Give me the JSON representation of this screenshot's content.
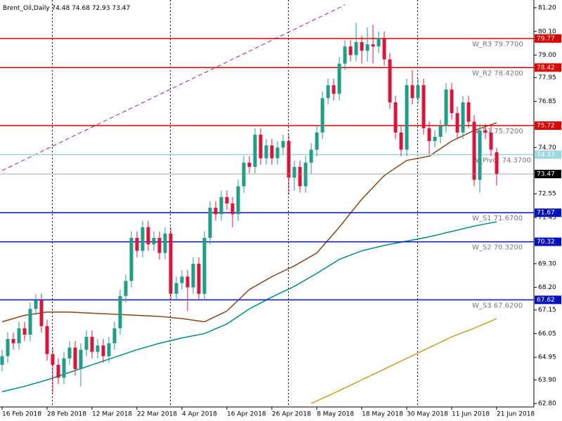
{
  "chart_data": {
    "type": "candlestick",
    "title": "Brent_Oil,Daily",
    "categories": [
      "16 Feb 2018",
      null,
      null,
      null,
      null,
      null,
      null,
      null,
      "28 Feb 2018",
      null,
      null,
      null,
      null,
      null,
      null,
      null,
      "12 Mar 2018",
      null,
      null,
      null,
      null,
      null,
      null,
      null,
      "22 Mar 2018",
      null,
      null,
      null,
      null,
      null,
      null,
      null,
      "4 Apr 2018",
      null,
      null,
      null,
      null,
      null,
      null,
      null,
      "16 Apr 2018",
      null,
      null,
      null,
      null,
      null,
      null,
      null,
      "26 Apr 2018",
      null,
      null,
      null,
      null,
      null,
      null,
      null,
      "8 May 2018",
      null,
      null,
      null,
      null,
      null,
      null,
      null,
      "18 May 2018",
      null,
      null,
      null,
      null,
      null,
      null,
      null,
      "30 May 2018",
      null,
      null,
      null,
      null,
      null,
      null,
      null,
      "11 Jun 2018",
      null,
      null,
      null,
      null,
      null,
      null,
      null,
      "21 Jun 2018"
    ],
    "open": [
      64.6,
      65.0,
      65.8,
      65.6,
      66.3,
      66.0,
      67.2,
      67.6,
      66.4,
      65.1,
      64.6,
      64.0,
      64.9,
      65.4,
      64.4,
      65.3,
      65.9,
      65.2,
      65.5,
      65.0,
      65.6,
      66.3,
      67.8,
      68.5,
      70.5,
      69.9,
      71.0,
      70.2,
      70.5,
      69.8,
      70.7,
      67.9,
      68.4,
      68.7,
      68.2,
      69.3,
      67.9,
      70.5,
      71.9,
      71.6,
      72.4,
      72.1,
      71.6,
      72.9,
      74.0,
      73.8,
      75.3,
      74.2,
      74.8,
      74.2,
      74.7,
      75.0,
      73.3,
      73.8,
      72.9,
      74.0,
      74.6,
      75.4,
      77.0,
      77.6,
      77.2,
      78.6,
      79.4,
      79.0,
      79.6,
      79.2,
      79.5,
      79.4,
      79.8,
      78.8,
      76.8,
      75.4,
      74.6,
      77.6,
      77.0,
      77.6,
      75.6,
      75.0,
      75.2,
      75.7,
      77.4,
      76.3,
      75.4,
      76.8,
      75.9,
      73.2,
      75.5,
      75.4,
      74.48
    ],
    "high": [
      65.3,
      66.1,
      66.1,
      66.6,
      66.6,
      67.5,
      67.9,
      67.9,
      66.7,
      65.4,
      64.9,
      65.2,
      65.7,
      65.7,
      65.6,
      66.2,
      66.2,
      65.8,
      65.8,
      65.9,
      66.6,
      68.1,
      68.8,
      70.8,
      70.8,
      71.3,
      71.3,
      70.8,
      70.8,
      71.0,
      71.0,
      68.7,
      69.0,
      69.0,
      69.6,
      69.6,
      70.8,
      72.2,
      72.2,
      72.7,
      72.7,
      72.4,
      73.2,
      74.3,
      74.3,
      75.6,
      75.6,
      75.1,
      75.1,
      75.0,
      75.3,
      75.3,
      74.1,
      74.1,
      74.3,
      74.9,
      75.7,
      77.3,
      77.9,
      77.9,
      78.9,
      79.7,
      79.7,
      80.5,
      79.9,
      80.3,
      80.4,
      80.1,
      80.1,
      79.1,
      77.1,
      75.7,
      77.9,
      78.3,
      77.9,
      77.9,
      75.9,
      75.5,
      76.0,
      77.7,
      77.7,
      76.6,
      77.1,
      77.1,
      76.2,
      75.8,
      75.8,
      75.7,
      74.68
    ],
    "low": [
      64.3,
      64.7,
      65.3,
      65.3,
      65.7,
      65.7,
      66.9,
      66.1,
      64.8,
      63.3,
      63.7,
      63.7,
      64.6,
      64.1,
      63.6,
      65.0,
      64.9,
      64.9,
      64.7,
      64.7,
      65.3,
      66.0,
      67.5,
      68.2,
      69.6,
      69.6,
      69.9,
      69.9,
      69.5,
      69.5,
      67.6,
      67.6,
      68.1,
      67.1,
      67.9,
      67.6,
      67.6,
      70.2,
      71.3,
      71.3,
      71.8,
      71.0,
      71.3,
      72.6,
      73.5,
      73.5,
      73.9,
      73.9,
      73.9,
      73.9,
      74.4,
      72.5,
      72.7,
      72.6,
      72.6,
      73.5,
      74.3,
      75.1,
      76.7,
      76.9,
      76.9,
      78.3,
      78.7,
      78.7,
      78.6,
      78.7,
      78.6,
      79.1,
      78.5,
      76.5,
      75.1,
      74.3,
      74.3,
      76.7,
      76.7,
      75.3,
      74.4,
      74.7,
      74.9,
      75.4,
      76.0,
      75.1,
      75.1,
      75.6,
      72.9,
      72.6,
      75.1,
      74.3,
      72.93
    ],
    "close": [
      65.0,
      65.8,
      65.6,
      66.3,
      66.0,
      67.2,
      67.6,
      66.4,
      65.1,
      64.6,
      64.0,
      64.9,
      65.4,
      64.4,
      65.3,
      65.9,
      65.2,
      65.5,
      65.0,
      65.6,
      66.3,
      67.8,
      68.5,
      70.5,
      69.9,
      71.0,
      70.2,
      70.5,
      69.8,
      70.7,
      67.9,
      68.4,
      68.7,
      68.2,
      69.3,
      67.9,
      70.5,
      71.9,
      71.6,
      72.4,
      72.1,
      71.6,
      72.9,
      74.0,
      73.8,
      75.3,
      74.2,
      74.8,
      74.2,
      74.7,
      75.0,
      73.3,
      73.8,
      72.9,
      74.0,
      74.6,
      75.4,
      77.0,
      77.6,
      77.2,
      78.6,
      79.4,
      79.0,
      79.6,
      79.2,
      79.5,
      79.4,
      79.8,
      78.8,
      76.8,
      75.4,
      74.6,
      77.6,
      77.0,
      77.6,
      75.6,
      75.0,
      75.2,
      75.7,
      77.4,
      76.3,
      75.4,
      76.8,
      75.9,
      73.2,
      75.5,
      75.4,
      74.6,
      73.47
    ],
    "up_color": "#1f9e89",
    "down_color": "#dc143c",
    "current_price_color": "#000000",
    "lines": [
      {
        "color": "#8b4513",
        "dash": false,
        "x": [
          0,
          4,
          8,
          12,
          16,
          20,
          24,
          28,
          32,
          36,
          40,
          44,
          48,
          52,
          56,
          60,
          64,
          68,
          72,
          76,
          80,
          84,
          88
        ],
        "values": [
          66.6,
          66.9,
          67.05,
          67.05,
          67.0,
          66.95,
          66.9,
          66.85,
          66.75,
          66.6,
          67.1,
          68.1,
          68.7,
          69.2,
          69.8,
          71.0,
          72.3,
          73.4,
          74.1,
          74.3,
          75.0,
          75.5,
          75.85
        ]
      },
      {
        "color": "#008b8b",
        "dash": false,
        "x": [
          0,
          4,
          8,
          12,
          16,
          20,
          24,
          28,
          32,
          36,
          40,
          44,
          48,
          52,
          56,
          60,
          64,
          68,
          72,
          76,
          80,
          84,
          88
        ],
        "values": [
          63.35,
          63.6,
          63.9,
          64.25,
          64.6,
          64.95,
          65.3,
          65.6,
          65.85,
          66.05,
          66.5,
          67.2,
          67.75,
          68.25,
          68.85,
          69.5,
          69.9,
          70.15,
          70.35,
          70.55,
          70.8,
          71.05,
          71.25
        ]
      },
      {
        "color": "#c8a020",
        "dash": false,
        "x": [
          55,
          60,
          64,
          68,
          72,
          76,
          80,
          84,
          88
        ],
        "values": [
          62.8,
          63.4,
          63.9,
          64.4,
          64.9,
          65.4,
          65.9,
          66.3,
          66.75
        ]
      },
      {
        "color": "#a0208c",
        "dash": true,
        "x": [
          0,
          61
        ],
        "values": [
          73.63,
          81.33
        ]
      }
    ],
    "levels": [
      {
        "label": "W_R3 79.7700",
        "value": 79.77,
        "color": "#e00000"
      },
      {
        "label": "W_R2 78.4200",
        "value": 78.42,
        "color": "#e00000"
      },
      {
        "label": "W_R1 75.7200",
        "value": 75.72,
        "color": "#e00000"
      },
      {
        "label": "W_Pivot 74.3700",
        "value": 74.37,
        "color": "#9fd8dc"
      },
      {
        "label": "W_S1 71.6700",
        "value": 71.67,
        "color": "#0010c0"
      },
      {
        "label": "W_S2 70.3200",
        "value": 70.32,
        "color": "#0010c0"
      },
      {
        "label": "W_S3 67.6200",
        "value": 67.62,
        "color": "#0010c0"
      }
    ],
    "period_separators": [
      9,
      30,
      51,
      74
    ],
    "ylim": [
      62.64,
      81.56
    ],
    "yticks": [
      {
        "value": 81.2,
        "label": "81.20"
      },
      {
        "value": 80.1,
        "label": "80.10"
      },
      {
        "value": 79,
        "label": "79.00"
      },
      77.95,
      76.85,
      {
        "value": 74.7,
        "label": "74.70"
      },
      72.55,
      71.45,
      {
        "value": 69.3,
        "label": "69.30"
      },
      {
        "value": 68.2,
        "label": "68.20"
      },
      67.15,
      66.05,
      64.95,
      {
        "value": 63.9,
        "label": "63.90"
      },
      {
        "value": 62.8,
        "label": "62.80"
      }
    ]
  }
}
